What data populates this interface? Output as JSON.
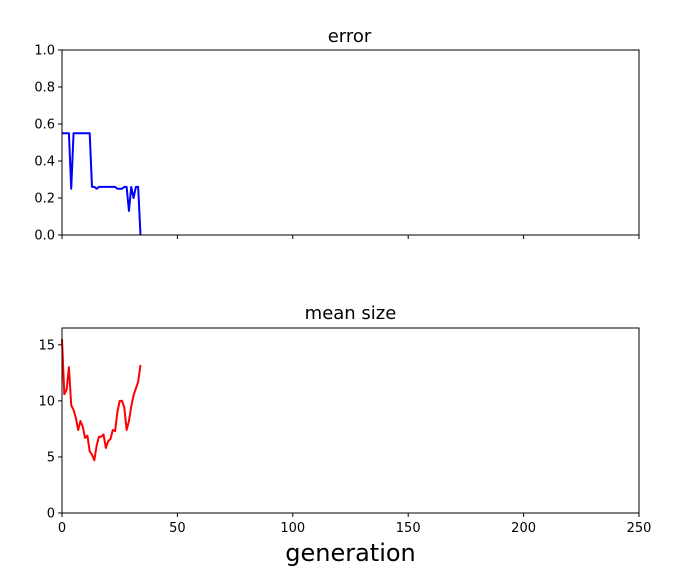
{
  "chart_data": [
    {
      "type": "line",
      "title": "error",
      "xlabel": "",
      "ylabel": "",
      "xlim": [
        0,
        250
      ],
      "ylim": [
        0,
        1.0
      ],
      "x_ticks": [
        0,
        50,
        100,
        150,
        200,
        250
      ],
      "x_tick_labels_visible": false,
      "y_ticks": [
        0.0,
        0.2,
        0.4,
        0.6,
        0.8,
        1.0
      ],
      "y_tick_labels": [
        "0.0",
        "0.2",
        "0.4",
        "0.6",
        "0.8",
        "1.0"
      ],
      "grid": false,
      "series": [
        {
          "color": "#0000ff",
          "x": [
            0,
            1,
            2,
            3,
            4,
            5,
            6,
            7,
            8,
            9,
            10,
            11,
            12,
            13,
            14,
            15,
            16,
            17,
            18,
            19,
            20,
            21,
            22,
            23,
            24,
            25,
            26,
            27,
            28,
            29,
            30,
            31,
            32,
            33,
            34
          ],
          "y": [
            0.55,
            0.55,
            0.55,
            0.55,
            0.25,
            0.55,
            0.55,
            0.55,
            0.55,
            0.55,
            0.55,
            0.55,
            0.55,
            0.26,
            0.26,
            0.25,
            0.26,
            0.26,
            0.26,
            0.26,
            0.26,
            0.26,
            0.26,
            0.26,
            0.25,
            0.25,
            0.25,
            0.26,
            0.26,
            0.13,
            0.26,
            0.2,
            0.26,
            0.26,
            0.0
          ]
        }
      ]
    },
    {
      "type": "line",
      "title": "mean size",
      "xlabel": "generation",
      "ylabel": "",
      "xlim": [
        0,
        250
      ],
      "ylim": [
        0,
        16.5
      ],
      "x_ticks": [
        0,
        50,
        100,
        150,
        200,
        250
      ],
      "x_tick_labels": [
        "0",
        "50",
        "100",
        "150",
        "200",
        "250"
      ],
      "y_ticks": [
        0,
        5,
        10,
        15
      ],
      "y_tick_labels": [
        "0",
        "5",
        "10",
        "15"
      ],
      "grid": false,
      "series": [
        {
          "color": "#ff0000",
          "x": [
            0,
            1,
            2,
            3,
            4,
            5,
            6,
            7,
            8,
            9,
            10,
            11,
            12,
            13,
            14,
            15,
            16,
            17,
            18,
            19,
            20,
            21,
            22,
            23,
            24,
            25,
            26,
            27,
            28,
            29,
            30,
            31,
            32,
            33,
            34
          ],
          "y": [
            15.5,
            10.6,
            11.0,
            13.0,
            9.6,
            9.2,
            8.5,
            7.4,
            8.2,
            7.7,
            6.7,
            6.9,
            5.5,
            5.2,
            4.7,
            6.0,
            6.8,
            6.8,
            7.0,
            5.8,
            6.4,
            6.6,
            7.4,
            7.3,
            9.0,
            10.0,
            10.0,
            9.4,
            7.4,
            8.2,
            9.5,
            10.5,
            11.1,
            11.7,
            13.2
          ]
        }
      ]
    }
  ]
}
